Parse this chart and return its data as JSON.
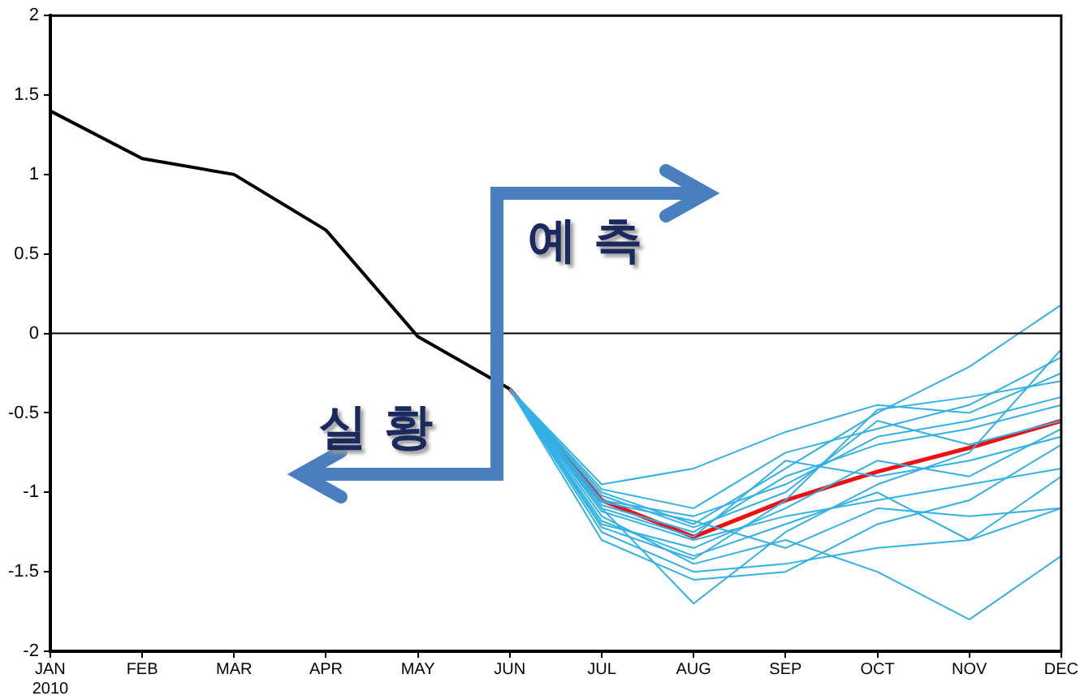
{
  "chart_data": {
    "type": "line",
    "categories": [
      "JAN\n2010",
      "FEB",
      "MAR",
      "APR",
      "MAY",
      "JUN",
      "JUL",
      "AUG",
      "SEP",
      "OCT",
      "NOV",
      "DEC"
    ],
    "ylim": [
      -2,
      2
    ],
    "yticks": [
      -2,
      -1.5,
      -1,
      -0.5,
      0,
      0.5,
      1,
      1.5,
      2
    ],
    "grid": false,
    "legend": false,
    "marker": "none",
    "line_style": "solid",
    "ref_lines": [
      {
        "axis": "y",
        "value": 0,
        "color": "#000000"
      }
    ],
    "annotations": [
      "실 황",
      "예 측"
    ],
    "series": [
      {
        "color": "#33b1e6",
        "values": [
          null,
          null,
          null,
          null,
          null,
          -0.35,
          -0.95,
          -0.85,
          -0.62,
          -0.45,
          -0.5,
          -0.25
        ]
      },
      {
        "color": "#33b1e6",
        "values": [
          null,
          null,
          null,
          null,
          null,
          -0.35,
          -1.0,
          -1.2,
          -0.85,
          -0.5,
          -0.21,
          0.18
        ]
      },
      {
        "color": "#33b1e6",
        "values": [
          null,
          null,
          null,
          null,
          null,
          -0.35,
          -1.1,
          -1.7,
          -1.25,
          -0.95,
          -0.75,
          -0.1
        ]
      },
      {
        "color": "#33b1e6",
        "values": [
          null,
          null,
          null,
          null,
          null,
          -0.35,
          -1.15,
          -1.45,
          -1.3,
          -1.5,
          -1.8,
          -1.4
        ]
      },
      {
        "color": "#33b1e6",
        "values": [
          null,
          null,
          null,
          null,
          null,
          -0.35,
          -1.05,
          -1.15,
          -0.95,
          -0.65,
          -0.55,
          -0.4
        ]
      },
      {
        "color": "#33b1e6",
        "values": [
          null,
          null,
          null,
          null,
          null,
          -0.35,
          -1.2,
          -1.35,
          -1.1,
          -0.8,
          -0.9,
          -0.6
        ]
      },
      {
        "color": "#33b1e6",
        "values": [
          null,
          null,
          null,
          null,
          null,
          -0.35,
          -1.25,
          -1.5,
          -1.45,
          -1.35,
          -1.3,
          -1.1
        ]
      },
      {
        "color": "#33b1e6",
        "values": [
          null,
          null,
          null,
          null,
          null,
          -0.35,
          -1.08,
          -1.25,
          -0.9,
          -0.7,
          -0.6,
          -0.45
        ]
      },
      {
        "color": "#33b1e6",
        "values": [
          null,
          null,
          null,
          null,
          null,
          -0.35,
          -1.12,
          -1.3,
          -1.15,
          -1.05,
          -0.95,
          -0.85
        ]
      },
      {
        "color": "#33b1e6",
        "values": [
          null,
          null,
          null,
          null,
          null,
          -0.35,
          -0.98,
          -1.1,
          -0.75,
          -0.6,
          -0.45,
          -0.15
        ]
      },
      {
        "color": "#33b1e6",
        "values": [
          null,
          null,
          null,
          null,
          null,
          -0.35,
          -1.18,
          -1.4,
          -1.2,
          -1.0,
          -1.3,
          -0.9
        ]
      },
      {
        "color": "#33b1e6",
        "values": [
          null,
          null,
          null,
          null,
          null,
          -0.35,
          -1.02,
          -1.22,
          -1.0,
          -0.55,
          -0.7,
          -0.55
        ]
      },
      {
        "color": "#33b1e6",
        "values": [
          null,
          null,
          null,
          null,
          null,
          -0.35,
          -1.3,
          -1.55,
          -1.5,
          -1.2,
          -1.05,
          -0.7
        ]
      },
      {
        "color": "#33b1e6",
        "values": [
          null,
          null,
          null,
          null,
          null,
          -0.35,
          -1.1,
          -1.28,
          -0.8,
          -0.9,
          -0.8,
          -0.65
        ]
      },
      {
        "color": "#33b1e6",
        "values": [
          null,
          null,
          null,
          null,
          null,
          -0.35,
          -1.06,
          -1.18,
          -1.35,
          -1.1,
          -1.15,
          -1.1
        ]
      },
      {
        "color": "#33b1e6",
        "values": [
          null,
          null,
          null,
          null,
          null,
          -0.35,
          -1.22,
          -1.42,
          -1.05,
          -0.48,
          -0.4,
          -0.3
        ]
      },
      {
        "color": "#000000",
        "values": [
          1.4,
          1.1,
          1.0,
          0.65,
          -0.02,
          -0.35,
          null,
          null,
          null,
          null,
          null,
          null
        ]
      },
      {
        "color": "#ee1111",
        "values": [
          null,
          null,
          null,
          null,
          null,
          -0.35,
          -1.05,
          -1.28,
          -1.05,
          -0.87,
          -0.72,
          -0.55
        ]
      }
    ]
  }
}
